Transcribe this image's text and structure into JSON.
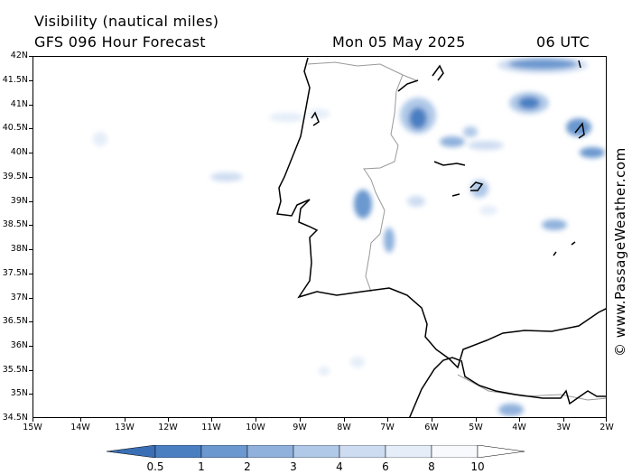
{
  "header": {
    "title": "Visibility (nautical miles)",
    "subtitle": "GFS 096 Hour Forecast",
    "date": "Mon 05 May 2025",
    "time": "06 UTC"
  },
  "credit": "© www.PassageWeather.com",
  "map": {
    "region": "Portugal, SW Spain, Strait of Gibraltar, Morocco coast",
    "lon_range": [
      -15,
      -2
    ],
    "lat_range": [
      34.5,
      42
    ],
    "lat_labels": [
      "42N",
      "41.5N",
      "41N",
      "40.5N",
      "40N",
      "39.5N",
      "39N",
      "38.5N",
      "38N",
      "37.5N",
      "37N",
      "36.5N",
      "36N",
      "35.5N",
      "35N",
      "34.5N"
    ],
    "lon_labels": [
      "15W",
      "14W",
      "13W",
      "12W",
      "11W",
      "10W",
      "9W",
      "8W",
      "7W",
      "6W",
      "5W",
      "4W",
      "3W",
      "2W"
    ]
  },
  "legend": {
    "labels": [
      "0.5",
      "1",
      "2",
      "3",
      "4",
      "6",
      "8",
      "10"
    ],
    "colors": [
      "#3a6fb5",
      "#4a7fc2",
      "#6b98cf",
      "#8fb1dc",
      "#b0c9e8",
      "#cddcf1",
      "#e4edf8",
      "#f7f9fd"
    ]
  }
}
